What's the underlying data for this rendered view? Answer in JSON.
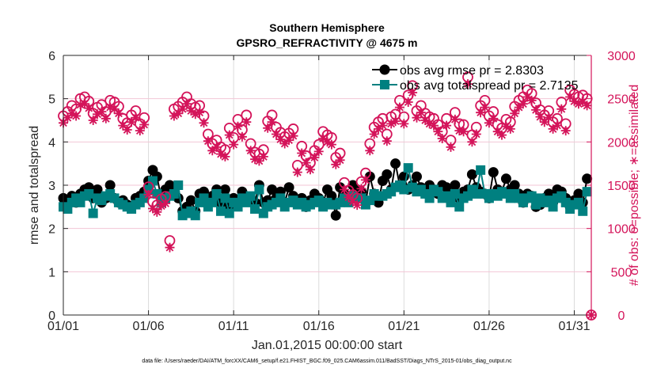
{
  "chart_data": {
    "type": "line",
    "title": "Southern Hemisphere",
    "subtitle": "GPSRO_REFRACTIVITY @ 4675 m",
    "xlabel": "Jan.01,2015 00:00:00 start",
    "ylabel": "rmse and totalspread",
    "ylabel_right": "# of obs: o=possible; ∗=assimilated",
    "footnote": "data file: /Users/raeder/DAI/ATM_forcXX/CAM6_setup/f.e21.FHIST_BGC.f09_025.CAM6assim.011/BadSST/Diags_NTrS_2015-01/obs_diag_output.nc",
    "xlim_days": [
      0,
      31
    ],
    "x_step_days": 0.25,
    "x_ticks": [
      {
        "day": 0,
        "label": "01/01"
      },
      {
        "day": 5,
        "label": "01/06"
      },
      {
        "day": 10,
        "label": "01/11"
      },
      {
        "day": 15,
        "label": "01/16"
      },
      {
        "day": 20,
        "label": "01/21"
      },
      {
        "day": 25,
        "label": "01/26"
      },
      {
        "day": 30,
        "label": "01/31"
      }
    ],
    "ylim": [
      0,
      6
    ],
    "y_ticks": [
      "0",
      "1",
      "2",
      "3",
      "4",
      "5",
      "6"
    ],
    "ylim_right": [
      0,
      3000
    ],
    "y_ticks_right": [
      "0",
      "500",
      "1000",
      "1500",
      "2000",
      "2500",
      "3000"
    ],
    "grid": true,
    "legend_position": "top-right",
    "colors": {
      "rmse": "#000000",
      "spread": "#008080",
      "obs": "#d4145a"
    },
    "series": [
      {
        "name": "obs avg rmse pr = 2.8303",
        "axis": "left",
        "marker": "circle",
        "values": [
          2.7,
          2.6,
          2.75,
          2.6,
          2.8,
          2.9,
          2.95,
          2.7,
          2.9,
          2.6,
          2.7,
          3.0,
          2.7,
          2.6,
          2.65,
          2.55,
          2.5,
          2.7,
          2.75,
          2.85,
          3.1,
          3.35,
          3.2,
          2.7,
          2.9,
          3.0,
          2.85,
          2.7,
          2.4,
          2.5,
          2.65,
          2.4,
          2.8,
          2.85,
          2.6,
          2.75,
          2.9,
          2.6,
          2.9,
          2.5,
          2.7,
          2.6,
          2.85,
          2.65,
          2.7,
          2.6,
          3.0,
          2.6,
          2.65,
          2.9,
          2.7,
          2.85,
          2.6,
          2.95,
          2.75,
          2.6,
          2.7,
          2.5,
          2.65,
          2.8,
          2.7,
          2.6,
          2.9,
          2.75,
          2.3,
          2.95,
          2.8,
          2.7,
          3.0,
          2.9,
          2.85,
          2.6,
          3.2,
          2.8,
          2.6,
          3.1,
          3.25,
          2.9,
          3.5,
          3.0,
          3.2,
          2.9,
          3.0,
          3.2,
          2.95,
          2.85,
          3.0,
          2.9,
          2.8,
          3.0,
          2.95,
          2.75,
          3.0,
          2.7,
          2.85,
          2.9,
          3.25,
          2.95,
          2.85,
          2.8,
          2.7,
          3.3,
          2.9,
          2.85,
          3.15,
          2.9,
          3.0,
          2.8,
          2.6,
          2.8,
          2.75,
          2.5,
          2.55,
          2.7,
          2.8,
          2.6,
          2.9,
          2.85,
          2.7,
          2.5,
          2.65,
          2.8,
          2.6,
          3.15,
          null
        ]
      },
      {
        "name": "obs avg totalspread pr = 2.7135",
        "axis": "left",
        "marker": "square",
        "values": [
          2.5,
          2.45,
          2.6,
          2.7,
          2.6,
          2.75,
          2.8,
          2.35,
          2.7,
          2.65,
          2.75,
          2.8,
          2.7,
          2.6,
          2.55,
          2.5,
          2.45,
          2.55,
          2.6,
          2.7,
          2.9,
          3.1,
          2.8,
          2.6,
          2.7,
          2.75,
          2.8,
          3.0,
          2.3,
          2.35,
          2.4,
          2.3,
          2.6,
          2.7,
          2.5,
          2.6,
          2.8,
          2.4,
          2.7,
          2.35,
          2.6,
          2.5,
          2.7,
          2.6,
          2.75,
          2.45,
          2.9,
          2.35,
          2.5,
          2.55,
          2.6,
          2.7,
          2.5,
          2.6,
          2.65,
          2.55,
          2.6,
          2.5,
          2.55,
          2.6,
          2.65,
          2.5,
          2.6,
          2.55,
          2.55,
          2.6,
          2.7,
          2.6,
          2.75,
          2.7,
          2.7,
          2.55,
          2.65,
          2.8,
          2.75,
          2.75,
          2.8,
          2.85,
          2.95,
          3.0,
          2.9,
          3.4,
          2.95,
          2.85,
          2.9,
          2.8,
          2.7,
          2.9,
          2.85,
          2.7,
          2.75,
          2.6,
          2.8,
          2.5,
          2.7,
          2.75,
          2.9,
          2.8,
          3.35,
          2.8,
          2.7,
          2.8,
          2.75,
          2.85,
          2.8,
          2.7,
          2.8,
          2.7,
          2.6,
          2.7,
          2.75,
          2.55,
          2.7,
          2.6,
          2.65,
          2.5,
          2.7,
          2.75,
          2.6,
          2.45,
          2.55,
          2.6,
          2.4,
          2.85,
          null
        ]
      },
      {
        "name": "obs possible",
        "axis": "right",
        "marker": "open-circle",
        "values": [
          2300,
          2350,
          2420,
          2380,
          2500,
          2520,
          2470,
          2330,
          2400,
          2430,
          2350,
          2480,
          2460,
          2410,
          2270,
          2220,
          2310,
          2360,
          2210,
          2280,
          1480,
          1310,
          1270,
          1340,
          1370,
          860,
          2380,
          2410,
          2460,
          2520,
          2440,
          2400,
          2420,
          2300,
          2090,
          1980,
          2020,
          1940,
          1910,
          2160,
          2050,
          2260,
          2140,
          2310,
          1980,
          1880,
          1860,
          1910,
          2240,
          2310,
          2170,
          2110,
          2060,
          2100,
          2150,
          1730,
          1950,
          1840,
          1760,
          1900,
          1970,
          2120,
          2080,
          2050,
          1820,
          1870,
          1530,
          1440,
          1390,
          1350,
          1540,
          1640,
          1980,
          2170,
          2230,
          2270,
          2090,
          2290,
          2320,
          2480,
          2290,
          2540,
          2650,
          2360,
          2420,
          2330,
          2290,
          2270,
          2200,
          2120,
          2270,
          2020,
          2340,
          2210,
          2200,
          2750,
          2080,
          2170,
          2420,
          2480,
          2300,
          2350,
          2200,
          2160,
          2260,
          2230,
          2410,
          2480,
          2520,
          2600,
          2560,
          2450,
          2370,
          2310,
          2360,
          2230,
          2270,
          2460,
          2210,
          2600,
          2550,
          2520,
          2540,
          2500,
          0
        ]
      },
      {
        "name": "obs assimilated",
        "axis": "right",
        "marker": "asterisk",
        "values": [
          2220,
          2280,
          2330,
          2300,
          2430,
          2440,
          2390,
          2250,
          2320,
          2350,
          2270,
          2400,
          2380,
          2330,
          2190,
          2140,
          2230,
          2280,
          2130,
          2200,
          1390,
          1230,
          1190,
          1260,
          1290,
          780,
          2300,
          2330,
          2380,
          2440,
          2360,
          2320,
          2340,
          2220,
          2010,
          1900,
          1940,
          1860,
          1830,
          2080,
          1970,
          2180,
          2060,
          2230,
          1900,
          1800,
          1780,
          1830,
          2160,
          2230,
          2090,
          2030,
          1980,
          2020,
          2070,
          1650,
          1870,
          1760,
          1680,
          1820,
          1890,
          2040,
          2000,
          1970,
          1740,
          1790,
          1450,
          1360,
          1310,
          1270,
          1460,
          1560,
          1900,
          2090,
          2150,
          2190,
          2010,
          2210,
          2240,
          2400,
          2210,
          2460,
          2570,
          2280,
          2340,
          2250,
          2210,
          2190,
          2120,
          2040,
          2190,
          1940,
          2260,
          2130,
          2120,
          2670,
          2000,
          2090,
          2340,
          2400,
          2220,
          2270,
          2120,
          2080,
          2180,
          2150,
          2330,
          2400,
          2440,
          2520,
          2480,
          2370,
          2290,
          2230,
          2280,
          2150,
          2190,
          2380,
          2130,
          2520,
          2470,
          2440,
          2460,
          2420,
          0
        ]
      }
    ]
  }
}
